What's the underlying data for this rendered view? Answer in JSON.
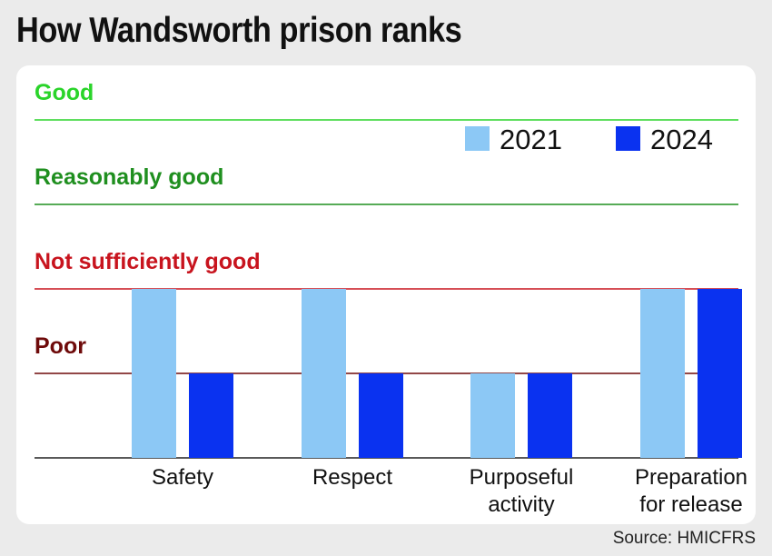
{
  "title": "How Wandsworth prison ranks",
  "source": "Source: HMICFRS",
  "colors": {
    "series_2021": "#8cc8f5",
    "series_2024": "#0a32f0",
    "good": "#2ad42a",
    "reasonably_good": "#1f8f1f",
    "not_sufficiently_good": "#c8141e",
    "poor": "#6e0a0a"
  },
  "chart_data": {
    "type": "bar",
    "title": "How Wandsworth prison ranks",
    "categories": [
      "Safety",
      "Respect",
      "Purposeful activity",
      "Preparation for release"
    ],
    "category_lines": [
      [
        "Safety"
      ],
      [
        "Respect"
      ],
      [
        "Purposeful",
        "activity"
      ],
      [
        "Preparation",
        "for release"
      ]
    ],
    "series": [
      {
        "name": "2021",
        "values": [
          2,
          2,
          1,
          2
        ]
      },
      {
        "name": "2024",
        "values": [
          1,
          1,
          1,
          2
        ]
      }
    ],
    "levels": [
      {
        "value": 1,
        "label": "Poor"
      },
      {
        "value": 2,
        "label": "Not sufficiently good"
      },
      {
        "value": 3,
        "label": "Reasonably good"
      },
      {
        "value": 4,
        "label": "Good"
      }
    ],
    "ylim": [
      0,
      4
    ],
    "legend_position": "top-right",
    "grid": true
  }
}
